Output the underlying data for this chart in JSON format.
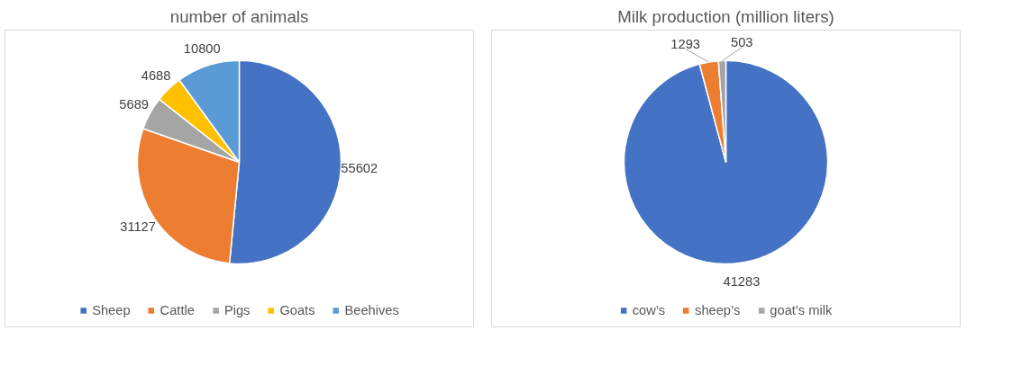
{
  "chart_data": [
    {
      "type": "pie",
      "title": "number of animals",
      "categories": [
        "Sheep",
        "Cattle",
        "Pigs",
        "Goats",
        "Beehives"
      ],
      "values": [
        55602,
        31127,
        5689,
        4688,
        10800
      ],
      "colors": [
        "#4472c4",
        "#ed7d31",
        "#a5a5a5",
        "#ffc000",
        "#5b9bd5"
      ],
      "data_labels": true,
      "legend": "bottom"
    },
    {
      "type": "pie",
      "title": "Milk production (million liters)",
      "categories": [
        "cow’s",
        "sheep’s",
        "goat’s milk"
      ],
      "values": [
        41283,
        1293,
        503
      ],
      "colors": [
        "#4472c4",
        "#ed7d31",
        "#a5a5a5"
      ],
      "data_labels": true,
      "legend": "bottom"
    }
  ]
}
